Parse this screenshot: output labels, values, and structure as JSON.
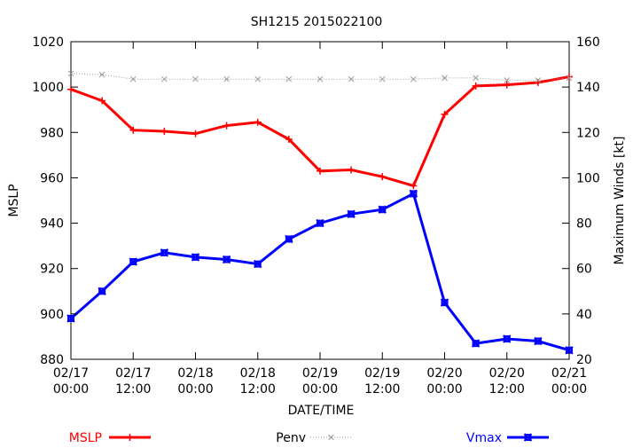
{
  "chart_data": {
    "type": "line",
    "title": "SH1215 2015022100",
    "xlabel": "DATE/TIME",
    "ylabel_left": "MSLP",
    "ylabel_right": "Maximum Winds [kt]",
    "x": [
      "02/17 00:00",
      "02/17 06:00",
      "02/17 12:00",
      "02/17 18:00",
      "02/18 00:00",
      "02/18 06:00",
      "02/18 12:00",
      "02/18 18:00",
      "02/19 00:00",
      "02/19 06:00",
      "02/19 12:00",
      "02/19 18:00",
      "02/20 00:00",
      "02/20 06:00",
      "02/20 12:00",
      "02/20 18:00",
      "02/21 00:00"
    ],
    "x_ticks": [
      {
        "date": "02/17",
        "time": "00:00"
      },
      {
        "date": "02/17",
        "time": "12:00"
      },
      {
        "date": "02/18",
        "time": "00:00"
      },
      {
        "date": "02/18",
        "time": "12:00"
      },
      {
        "date": "02/19",
        "time": "00:00"
      },
      {
        "date": "02/19",
        "time": "12:00"
      },
      {
        "date": "02/20",
        "time": "00:00"
      },
      {
        "date": "02/20",
        "time": "12:00"
      },
      {
        "date": "02/21",
        "time": "00:00"
      }
    ],
    "ylim_left": [
      880,
      1020
    ],
    "yticks_left": [
      "880",
      "900",
      "920",
      "940",
      "960",
      "980",
      "1000",
      "1020"
    ],
    "ylim_right": [
      20,
      160
    ],
    "yticks_right": [
      "20",
      "40",
      "60",
      "80",
      "100",
      "120",
      "140",
      "160"
    ],
    "grid": false,
    "legend_position": "bottom",
    "series": [
      {
        "name": "MSLP",
        "axis": "left",
        "color": "#ff0000",
        "marker": "plus",
        "values": [
          999,
          994,
          981,
          980.5,
          979.5,
          983,
          984.5,
          977,
          963,
          963.5,
          960.5,
          956.5,
          988,
          1000.5,
          1001,
          1002,
          1004.5
        ]
      },
      {
        "name": "Penv",
        "axis": "left",
        "color": "#999999",
        "marker": "x",
        "dotted": true,
        "values": [
          1006,
          1005.5,
          1003.5,
          1003.5,
          1003.5,
          1003.5,
          1003.5,
          1003.5,
          1003.5,
          1003.5,
          1003.5,
          1003.5,
          1004,
          1004,
          1003,
          1003,
          1004
        ]
      },
      {
        "name": "Vmax",
        "axis": "right",
        "color": "#0000ff",
        "marker": "box",
        "values": [
          38,
          50,
          63,
          67,
          65,
          64,
          62,
          73,
          80,
          84,
          86,
          93,
          45,
          27,
          29,
          28,
          24
        ]
      }
    ]
  }
}
